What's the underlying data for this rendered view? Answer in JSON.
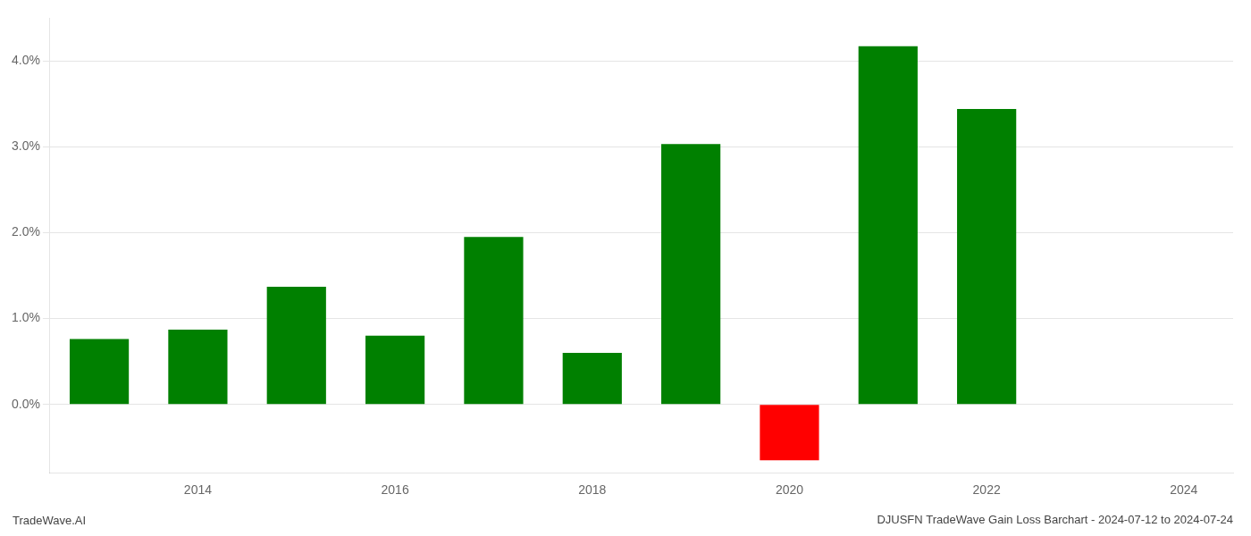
{
  "chart_data": {
    "type": "bar",
    "title": "DJUSFN TradeWave Gain Loss Barchart - 2024-07-12 to 2024-07-24",
    "annotations": [
      "TradeWave.AI"
    ],
    "x": [
      2013,
      2014,
      2015,
      2016,
      2017,
      2018,
      2019,
      2020,
      2021,
      2022,
      2023
    ],
    "values": [
      0.0076,
      0.0087,
      0.0137,
      0.008,
      0.0195,
      0.006,
      0.0303,
      -0.0065,
      0.0417,
      0.0344,
      0.0
    ],
    "colors": [
      "#008000",
      "#008000",
      "#008000",
      "#008000",
      "#008000",
      "#008000",
      "#008000",
      "#ff0000",
      "#008000",
      "#008000",
      "#008000"
    ],
    "xlim": [
      2012.5,
      2024.5
    ],
    "xticks": [
      2014,
      2016,
      2018,
      2020,
      2022,
      2024
    ],
    "ylim": [
      -0.008,
      0.045
    ],
    "yticks": [
      {
        "value": 0.0,
        "label": "0.0%"
      },
      {
        "value": 0.01,
        "label": "1.0%"
      },
      {
        "value": 0.02,
        "label": "2.0%"
      },
      {
        "value": 0.03,
        "label": "3.0%"
      },
      {
        "value": 0.04,
        "label": "4.0%"
      }
    ],
    "grid": true
  }
}
